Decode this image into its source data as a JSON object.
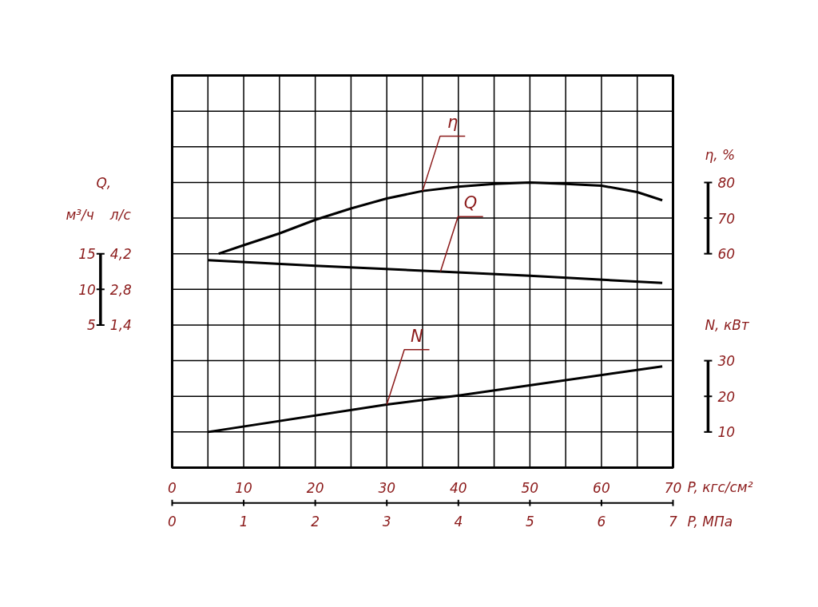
{
  "chart_data": {
    "type": "line",
    "xlabel": "P, кгс/см²",
    "x2label": "P, МПа",
    "xlim": [
      0,
      70
    ],
    "xticks": [
      0,
      {
        "value": 5,
        "label": null
      },
      10,
      {
        "value": 15,
        "label": null
      },
      20,
      {
        "value": 25,
        "label": null
      },
      30,
      {
        "value": 35,
        "label": null
      },
      40,
      {
        "value": 45,
        "label": null
      },
      50,
      {
        "value": 55,
        "label": null
      },
      60,
      {
        "value": 65,
        "label": null
      },
      70
    ],
    "x2lim": [
      0,
      7
    ],
    "x2ticks": [
      0,
      1,
      2,
      3,
      4,
      5,
      6,
      7
    ],
    "ylabel": "м³/ч",
    "ylim": [
      -15,
      40
    ],
    "yticks": [
      5,
      10,
      15
    ],
    "y2label": "л/с",
    "y2lim": [
      -4.2,
      11.2
    ],
    "y2ticks": [
      {
        "value": 1.4,
        "label": "1,4"
      },
      {
        "value": 2.8,
        "label": "2,8"
      },
      {
        "value": 4.2,
        "label": "4,2"
      }
    ],
    "y3label": "η, %",
    "y3lim": [
      0,
      110
    ],
    "y3ticks": [
      {
        "value": 0,
        "label": null
      },
      10,
      20,
      30,
      {
        "value": 40,
        "label": null
      },
      {
        "value": 50,
        "label": null
      },
      60,
      70,
      80,
      {
        "value": 90,
        "label": null
      },
      {
        "value": 100,
        "label": null
      },
      {
        "value": 110,
        "label": null
      }
    ],
    "annotations": [
      "Q,",
      "N, кВт"
    ],
    "grid": true,
    "marker": "none",
    "line_style": "solid",
    "series": [
      {
        "name": "η",
        "color": "#000000",
        "axis": "y3",
        "x": [
          6.5,
          10,
          15,
          20,
          25,
          30,
          35,
          40,
          45,
          50,
          55,
          60,
          65,
          68.5
        ],
        "values": [
          60,
          62.4,
          65.7,
          69.5,
          72.7,
          75.5,
          77.6,
          78.8,
          79.6,
          80,
          79.6,
          79.1,
          77.3,
          75
        ]
      },
      {
        "name": "Q",
        "color": "#000000",
        "x": [
          5,
          20,
          37.5,
          50,
          68.5
        ],
        "values": [
          14.1,
          13.3,
          12.5,
          11.9,
          10.9
        ]
      },
      {
        "name": "N",
        "color": "#000000",
        "axis": "y3",
        "x": [
          5,
          30,
          40,
          68.5
        ],
        "values": [
          10,
          17.7,
          20.2,
          28.4
        ]
      }
    ]
  }
}
